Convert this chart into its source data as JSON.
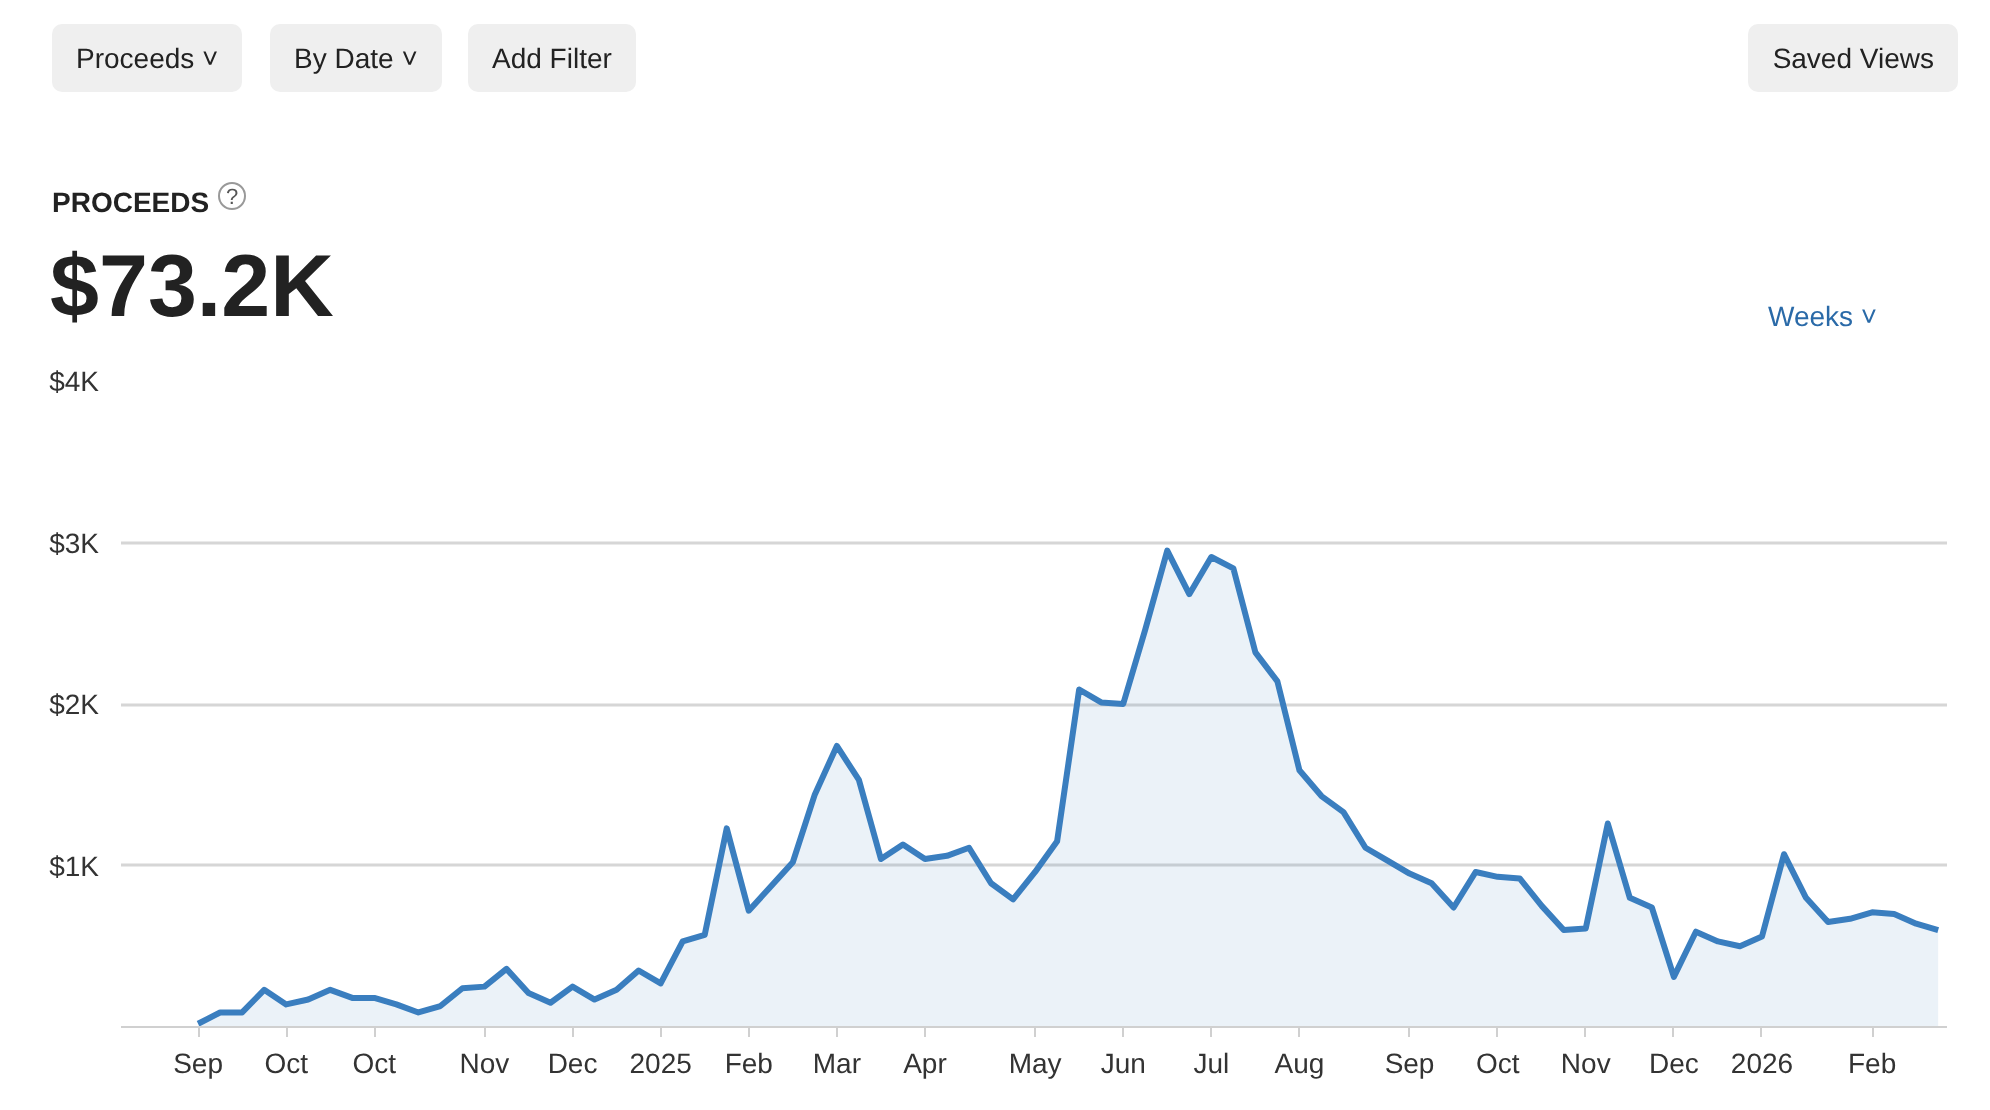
{
  "chart_data": {
    "type": "area",
    "title": "PROCEEDS",
    "subtitle": "$73.2K",
    "annotations": [
      "Proceeds ˅",
      "By Date ˅",
      "Add Filter",
      "Saved Views",
      "?",
      "Weeks ˅"
    ],
    "categories": [
      "Sep",
      null,
      null,
      null,
      "Oct",
      null,
      null,
      null,
      "Oct",
      null,
      null,
      null,
      null,
      "Nov",
      null,
      null,
      null,
      "Dec",
      null,
      null,
      null,
      "2025",
      null,
      null,
      null,
      "Feb",
      null,
      null,
      null,
      "Mar",
      null,
      null,
      null,
      "Apr",
      null,
      null,
      null,
      null,
      "May",
      null,
      null,
      null,
      "Jun",
      null,
      null,
      null,
      "Jul",
      null,
      null,
      null,
      "Aug",
      null,
      null,
      null,
      null,
      "Sep",
      null,
      null,
      null,
      "Oct",
      null,
      null,
      null,
      "Nov",
      null,
      null,
      null,
      "Dec",
      null,
      null,
      null,
      "2026",
      null,
      null,
      null,
      null,
      "Feb",
      null,
      null,
      null
    ],
    "series": [
      {
        "color": "#3a7ebf",
        "values": [
          20,
          90,
          90,
          230,
          140,
          170,
          230,
          180,
          180,
          140,
          90,
          130,
          240,
          250,
          360,
          210,
          150,
          250,
          170,
          230,
          350,
          270,
          530,
          570,
          1230,
          720,
          870,
          1020,
          1440,
          1740,
          1530,
          1040,
          1130,
          1040,
          1060,
          1110,
          890,
          790,
          960,
          1150,
          2090,
          2010,
          2000,
          2460,
          2950,
          2680,
          2910,
          2840,
          2320,
          2140,
          1590,
          1430,
          1330,
          1110,
          1030,
          950,
          890,
          740,
          960,
          930,
          920,
          750,
          600,
          610,
          1260,
          800,
          740,
          310,
          590,
          530,
          500,
          560,
          1070,
          800,
          650,
          670,
          710,
          700,
          640,
          600
        ]
      }
    ],
    "ylim": [
      0,
      4000
    ],
    "yticks": [
      {
        "value": 0,
        "label": null
      },
      {
        "value": 1000,
        "label": "$1K"
      },
      {
        "value": 2000,
        "label": "$2K"
      },
      {
        "value": 3000,
        "label": "$3K"
      },
      {
        "value": 4000,
        "label": "$4K"
      }
    ],
    "grid": "y"
  }
}
